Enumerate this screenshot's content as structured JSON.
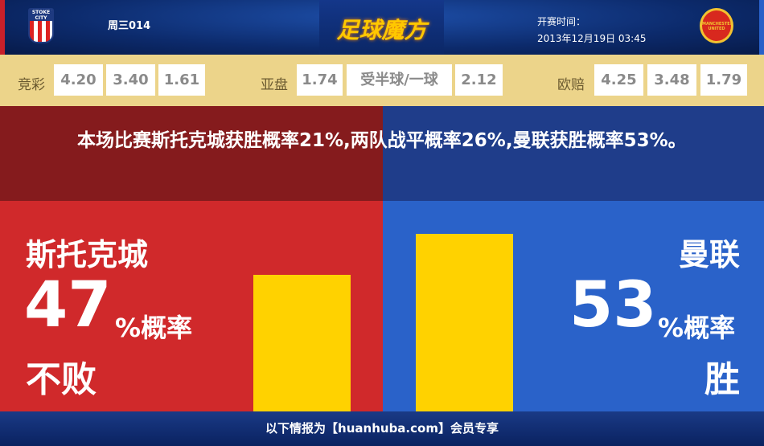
{
  "header": {
    "match_no": "周三014",
    "logo_text": "足球魔方",
    "kickoff_label": "开赛时间：",
    "kickoff_time": "2013年12月19日 03:45",
    "home_crest_text": "STOKE CITY",
    "away_crest_text": "MANCHESTER UNITED"
  },
  "odds": {
    "jingcai": {
      "label": "竞彩",
      "values": [
        "4.20",
        "3.40",
        "1.61"
      ]
    },
    "yapan": {
      "label": "亚盘",
      "values": [
        "1.74",
        "受半球/一球",
        "2.12"
      ]
    },
    "oupei": {
      "label": "欧赔",
      "values": [
        "4.25",
        "3.48",
        "1.79"
      ]
    }
  },
  "summary": "本场比赛斯托克城获胜概率21%,两队战平概率26%,曼联获胜概率53%。",
  "home": {
    "team": "斯托克城",
    "percent": "47",
    "unit": "%概率",
    "outcome": "不败",
    "value": 47
  },
  "away": {
    "team": "曼联",
    "percent": "53",
    "unit": "%概率",
    "outcome": "胜",
    "value": 53
  },
  "colors": {
    "home": "#d0292b",
    "away": "#2a62c9",
    "bar": "#ffd200"
  },
  "footer": "以下情报为【huanhuba.com】会员专享"
}
